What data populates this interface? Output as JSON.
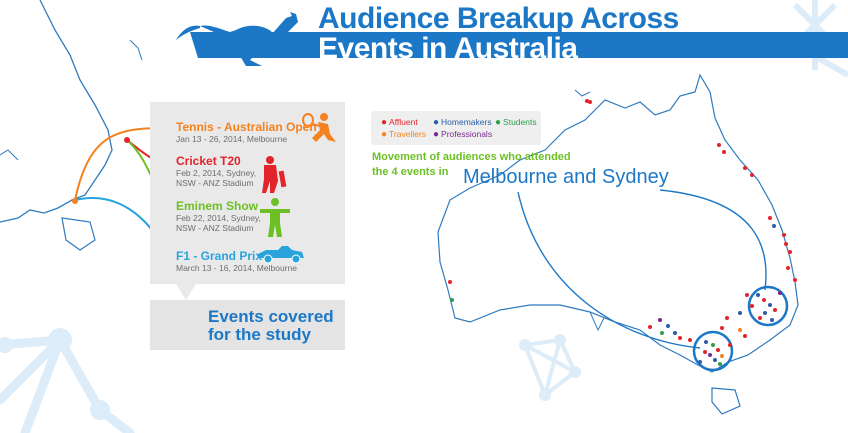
{
  "title": {
    "line1": "Audience Breakup Across",
    "line2": "Events in Australia"
  },
  "events": [
    {
      "name": "Tennis - Australian Open",
      "detail": [
        "Jan 13 - 26, 2014, Melbourne"
      ],
      "color": "#f58220",
      "icon": "tennis-player-icon"
    },
    {
      "name": "Cricket T20",
      "detail": [
        "Feb 2, 2014, Sydney,",
        "NSW - ANZ Stadium"
      ],
      "color": "#e3242b",
      "icon": "cricket-player-icon"
    },
    {
      "name": "Eminem Show",
      "detail": [
        "Feb 22, 2014, Sydney,",
        "NSW - ANZ Stadium"
      ],
      "color": "#6cc024",
      "icon": "singer-icon"
    },
    {
      "name": "F1 - Grand Prix",
      "detail": [
        "March 13 - 16, 2014, Melbourne"
      ],
      "color": "#29a3dc",
      "icon": "racing-car-icon"
    }
  ],
  "events_caption": [
    "Events covered",
    "for the study"
  ],
  "legend": {
    "items": [
      {
        "label": "Affluent",
        "color": "#e3242b"
      },
      {
        "label": "Homemakers",
        "color": "#2a5caa"
      },
      {
        "label": "Students",
        "color": "#2e9e48"
      },
      {
        "label": "Travellers",
        "color": "#f58220"
      },
      {
        "label": "Professionals",
        "color": "#7b2a90"
      }
    ]
  },
  "movement": {
    "line1": "Movement of audiences who attended",
    "line2": "the 4 events in",
    "highlight": "Melbourne and Sydney"
  },
  "colors": {
    "brand_blue": "#1c78c6",
    "map_outline": "#2f7bbf",
    "light_watermark": "#dcecf8"
  },
  "icons": [
    "kangaroo-icon",
    "network-watermark-icon"
  ]
}
